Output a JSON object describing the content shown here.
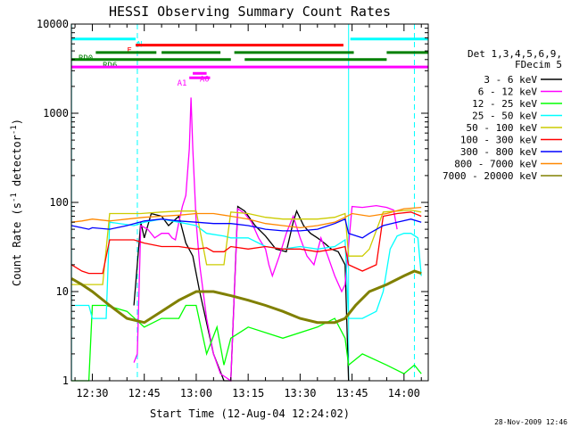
{
  "chart_data": {
    "type": "line",
    "title": "HESSI Observing Summary Count Rates",
    "xlabel": "Start Time (12-Aug-04 12:24:02)",
    "ylabel_main": "Count Rate (s",
    "ylabel_sup1": "-1",
    "ylabel_mid": " detector",
    "ylabel_sup2": "-1",
    "ylabel_end": ")",
    "y_scale": "log",
    "ylim": [
      1,
      10000
    ],
    "xlim_minutes": [
      -6.05,
      97.0
    ],
    "x_ticks": [
      {
        "label": "12:30",
        "m": 0
      },
      {
        "label": "12:45",
        "m": 15
      },
      {
        "label": "13:00",
        "m": 30
      },
      {
        "label": "13:15",
        "m": 45
      },
      {
        "label": "13:30",
        "m": 60
      },
      {
        "label": "13:45",
        "m": 75
      },
      {
        "label": "14:00",
        "m": 90
      }
    ],
    "y_ticks": [
      {
        "label": "1",
        "v": 1
      },
      {
        "label": "10",
        "v": 10
      },
      {
        "label": "100",
        "v": 100
      },
      {
        "label": "1000",
        "v": 1000
      },
      {
        "label": "10000",
        "v": 10000
      }
    ],
    "legend_header": [
      "Det 1,3,4,5,6,9,",
      "FDecim 5"
    ],
    "legend_position": "right",
    "series": [
      {
        "name": "3 - 6 keV",
        "color": "#000000",
        "points": [
          [
            12,
            7
          ],
          [
            14,
            60
          ],
          [
            15,
            40
          ],
          [
            17,
            75
          ],
          [
            20,
            70
          ],
          [
            22,
            55
          ],
          [
            25,
            70
          ],
          [
            27,
            35
          ],
          [
            29,
            25
          ],
          [
            31,
            10
          ],
          [
            35,
            2
          ],
          [
            38,
            1
          ],
          [
            40,
            1
          ],
          [
            42,
            90
          ],
          [
            44,
            80
          ],
          [
            47,
            55
          ],
          [
            50,
            42
          ],
          [
            53,
            30
          ],
          [
            56,
            28
          ],
          [
            58,
            60
          ],
          [
            59,
            80
          ],
          [
            61,
            55
          ],
          [
            63,
            45
          ],
          [
            65,
            40
          ],
          [
            67,
            35
          ],
          [
            69,
            30
          ],
          [
            71,
            28
          ],
          [
            73,
            20
          ],
          [
            74,
            1
          ]
        ]
      },
      {
        "name": "6 - 12 keV",
        "color": "#ff00ff",
        "points": [
          [
            12,
            1.6
          ],
          [
            13,
            2
          ],
          [
            14,
            55
          ],
          [
            16,
            50
          ],
          [
            18,
            40
          ],
          [
            20,
            45
          ],
          [
            22,
            45
          ],
          [
            23,
            40
          ],
          [
            24,
            38
          ],
          [
            25,
            60
          ],
          [
            26,
            90
          ],
          [
            27,
            120
          ],
          [
            28,
            400
          ],
          [
            28.5,
            1500
          ],
          [
            29,
            400
          ],
          [
            30,
            60
          ],
          [
            31,
            20
          ],
          [
            33,
            5
          ],
          [
            35,
            2
          ],
          [
            37,
            1.2
          ],
          [
            40,
            1
          ],
          [
            42,
            85
          ],
          [
            44,
            75
          ],
          [
            46,
            60
          ],
          [
            48,
            40
          ],
          [
            50,
            30
          ],
          [
            51,
            20
          ],
          [
            52,
            15
          ],
          [
            54,
            25
          ],
          [
            56,
            45
          ],
          [
            58,
            70
          ],
          [
            60,
            40
          ],
          [
            62,
            25
          ],
          [
            64,
            20
          ],
          [
            66,
            40
          ],
          [
            68,
            25
          ],
          [
            70,
            15
          ],
          [
            72,
            10
          ],
          [
            73,
            12
          ],
          [
            75,
            90
          ],
          [
            78,
            88
          ],
          [
            82,
            92
          ],
          [
            85,
            88
          ],
          [
            87,
            82
          ],
          [
            88,
            50
          ]
        ]
      },
      {
        "name": "12 - 25 keV",
        "color": "#00ff00",
        "points": [
          [
            -6,
            1
          ],
          [
            -1,
            1
          ],
          [
            0,
            7
          ],
          [
            4,
            7
          ],
          [
            10,
            6
          ],
          [
            15,
            4
          ],
          [
            20,
            5
          ],
          [
            25,
            5
          ],
          [
            27,
            7
          ],
          [
            30,
            7
          ],
          [
            33,
            2
          ],
          [
            36,
            4
          ],
          [
            38,
            1.5
          ],
          [
            40,
            3
          ],
          [
            45,
            4
          ],
          [
            55,
            3
          ],
          [
            65,
            4
          ],
          [
            70,
            5
          ],
          [
            73,
            3
          ],
          [
            74,
            1.5
          ],
          [
            78,
            2
          ],
          [
            85,
            1.5
          ],
          [
            90,
            1.2
          ],
          [
            93,
            1.5
          ],
          [
            95,
            1.2
          ]
        ]
      },
      {
        "name": "25 - 50 keV",
        "color": "#00ffff",
        "points": [
          [
            -6,
            7
          ],
          [
            -1,
            7
          ],
          [
            0,
            5
          ],
          [
            4,
            5
          ],
          [
            5,
            60
          ],
          [
            12,
            55
          ],
          [
            15,
            60
          ],
          [
            20,
            65
          ],
          [
            25,
            60
          ],
          [
            30,
            55
          ],
          [
            33,
            45
          ],
          [
            38,
            42
          ],
          [
            40,
            40
          ],
          [
            45,
            40
          ],
          [
            50,
            32
          ],
          [
            55,
            30
          ],
          [
            60,
            32
          ],
          [
            65,
            30
          ],
          [
            70,
            32
          ],
          [
            73,
            38
          ],
          [
            74,
            5
          ],
          [
            78,
            5
          ],
          [
            82,
            6
          ],
          [
            84,
            10
          ],
          [
            86,
            30
          ],
          [
            88,
            42
          ],
          [
            90,
            45
          ],
          [
            92,
            45
          ],
          [
            94,
            40
          ],
          [
            95,
            15
          ]
        ]
      },
      {
        "name": "50 - 100 keV",
        "color": "#cccc00",
        "points": [
          [
            -6,
            12
          ],
          [
            -1,
            12
          ],
          [
            0,
            12
          ],
          [
            3,
            12
          ],
          [
            5,
            75
          ],
          [
            12,
            75
          ],
          [
            14,
            75
          ],
          [
            20,
            78
          ],
          [
            25,
            80
          ],
          [
            30,
            80
          ],
          [
            33,
            20
          ],
          [
            38,
            20
          ],
          [
            40,
            78
          ],
          [
            45,
            75
          ],
          [
            50,
            68
          ],
          [
            55,
            65
          ],
          [
            60,
            65
          ],
          [
            65,
            65
          ],
          [
            70,
            68
          ],
          [
            73,
            75
          ],
          [
            74,
            25
          ],
          [
            78,
            25
          ],
          [
            80,
            30
          ],
          [
            84,
            78
          ],
          [
            88,
            80
          ],
          [
            92,
            82
          ],
          [
            95,
            78
          ]
        ]
      },
      {
        "name": "100 - 300 keV",
        "color": "#ff0000",
        "points": [
          [
            -6,
            20
          ],
          [
            -3,
            17
          ],
          [
            -1,
            16
          ],
          [
            0,
            16
          ],
          [
            3,
            16
          ],
          [
            5,
            38
          ],
          [
            12,
            38
          ],
          [
            15,
            35
          ],
          [
            20,
            32
          ],
          [
            25,
            32
          ],
          [
            30,
            30
          ],
          [
            33,
            31
          ],
          [
            35,
            28
          ],
          [
            38,
            28
          ],
          [
            40,
            32
          ],
          [
            45,
            30
          ],
          [
            50,
            32
          ],
          [
            55,
            30
          ],
          [
            60,
            30
          ],
          [
            65,
            28
          ],
          [
            70,
            30
          ],
          [
            73,
            32
          ],
          [
            74,
            20
          ],
          [
            78,
            17
          ],
          [
            82,
            20
          ],
          [
            84,
            70
          ],
          [
            88,
            75
          ],
          [
            92,
            78
          ],
          [
            95,
            70
          ]
        ]
      },
      {
        "name": "300 - 800 keV",
        "color": "#0000ff",
        "points": [
          [
            -6,
            55
          ],
          [
            -1,
            50
          ],
          [
            0,
            52
          ],
          [
            5,
            50
          ],
          [
            10,
            55
          ],
          [
            15,
            62
          ],
          [
            20,
            65
          ],
          [
            25,
            62
          ],
          [
            30,
            60
          ],
          [
            35,
            58
          ],
          [
            40,
            58
          ],
          [
            45,
            55
          ],
          [
            50,
            50
          ],
          [
            55,
            48
          ],
          [
            60,
            48
          ],
          [
            65,
            50
          ],
          [
            70,
            58
          ],
          [
            73,
            65
          ],
          [
            74,
            45
          ],
          [
            78,
            40
          ],
          [
            80,
            45
          ],
          [
            84,
            55
          ],
          [
            88,
            60
          ],
          [
            92,
            65
          ],
          [
            95,
            60
          ]
        ]
      },
      {
        "name": "800 - 7000 keV",
        "color": "#ff8800",
        "points": [
          [
            -6,
            60
          ],
          [
            -3,
            62
          ],
          [
            0,
            65
          ],
          [
            5,
            62
          ],
          [
            10,
            65
          ],
          [
            15,
            68
          ],
          [
            20,
            70
          ],
          [
            25,
            72
          ],
          [
            30,
            75
          ],
          [
            35,
            75
          ],
          [
            40,
            70
          ],
          [
            45,
            65
          ],
          [
            50,
            58
          ],
          [
            55,
            55
          ],
          [
            60,
            52
          ],
          [
            65,
            55
          ],
          [
            70,
            60
          ],
          [
            73,
            68
          ],
          [
            75,
            75
          ],
          [
            80,
            70
          ],
          [
            85,
            75
          ],
          [
            90,
            85
          ],
          [
            95,
            88
          ]
        ]
      },
      {
        "name": "7000 - 20000 keV",
        "color": "#808000",
        "points": [
          [
            -6,
            14
          ],
          [
            -3,
            12
          ],
          [
            0,
            10
          ],
          [
            5,
            7
          ],
          [
            10,
            5
          ],
          [
            15,
            4.5
          ],
          [
            20,
            6
          ],
          [
            25,
            8
          ],
          [
            30,
            10
          ],
          [
            35,
            10
          ],
          [
            40,
            9
          ],
          [
            45,
            8
          ],
          [
            50,
            7
          ],
          [
            55,
            6
          ],
          [
            60,
            5
          ],
          [
            65,
            4.5
          ],
          [
            70,
            4.5
          ],
          [
            73,
            5
          ],
          [
            76,
            7
          ],
          [
            80,
            10
          ],
          [
            85,
            12
          ],
          [
            90,
            15
          ],
          [
            93,
            17
          ],
          [
            95,
            16
          ]
        ]
      }
    ],
    "status_bars": [
      {
        "label": "N",
        "color": "#00ffff",
        "y_value": 6800,
        "segments": [
          [
            -6.05,
            12.5
          ],
          [
            74.5,
            97
          ]
        ],
        "label_at": 13.0
      },
      {
        "label": "F",
        "color": "#ff0000",
        "y_value": 5800,
        "segments": [
          [
            12.5,
            72.5
          ]
        ],
        "label_at": 10.0
      },
      {
        "label": "RD0",
        "color": "#008000",
        "y_value": 4800,
        "segments": [
          [
            1,
            18.5
          ],
          [
            20,
            37
          ],
          [
            41,
            75.5
          ],
          [
            85,
            97
          ]
        ],
        "label_at": -4.0
      },
      {
        "label": "RD6",
        "color": "#008000",
        "y_value": 4000,
        "segments": [
          [
            -6.05,
            40
          ],
          [
            44,
            85
          ]
        ],
        "label_at": 3.0
      },
      {
        "label": "",
        "color": "#ff00ff",
        "y_value": 3300,
        "segments": [
          [
            -6.05,
            97
          ]
        ],
        "label_at": null
      },
      {
        "label": "A0",
        "color": "#ff00ff",
        "y_value": 2800,
        "segments": [
          [
            29,
            33
          ]
        ],
        "label_at": 31.0
      },
      {
        "label": "A1",
        "color": "#ff00ff",
        "y_value": 2500,
        "segments": [
          [
            28,
            34
          ]
        ],
        "label_at": 24.5
      }
    ],
    "vlines_dashed": [
      13,
      93
    ],
    "vlines_solid": [
      -6,
      74
    ],
    "footer_timestamp": "28-Nov-2009 12:46"
  }
}
